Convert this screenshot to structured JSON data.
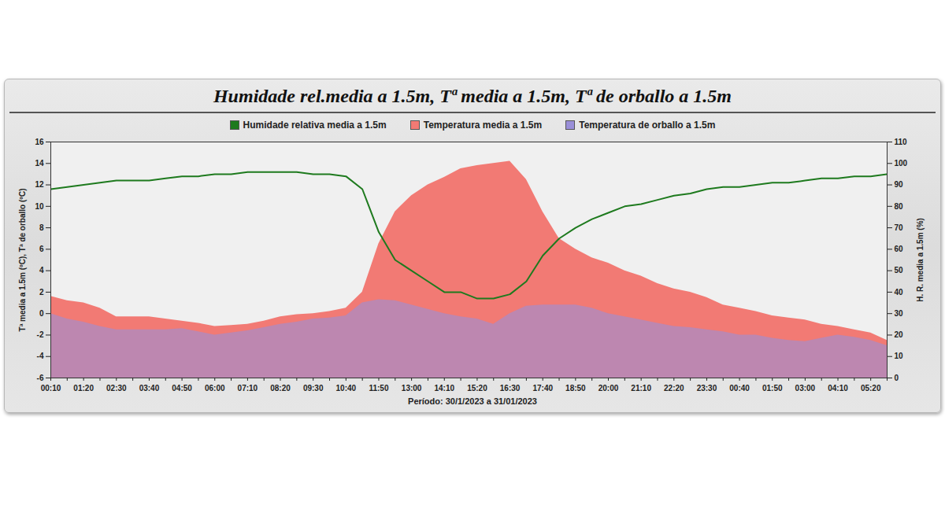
{
  "chart_data": {
    "type": "line",
    "title": "Humidade rel.media a 1.5m, Tª media a 1.5m, Tª de orballo a 1.5m",
    "x_label": "Período: 30/1/2023 a 31/01/2023",
    "y_label": "Tª media a 1.5m (ºC), Tª de orballo (ºC)",
    "y2_label": "H. R. media a 1.5m (%)",
    "categories": [
      "00:10",
      null,
      "01:20",
      null,
      "02:30",
      null,
      "03:40",
      null,
      "04:50",
      null,
      "06:00",
      null,
      "07:10",
      null,
      "08:20",
      null,
      "09:30",
      null,
      "10:40",
      null,
      "11:50",
      null,
      "13:00",
      null,
      "14:10",
      null,
      "15:20",
      null,
      "16:30",
      null,
      "17:40",
      null,
      "18:50",
      null,
      "20:00",
      null,
      "21:10",
      null,
      "22:20",
      null,
      "23:30",
      null,
      "00:40",
      null,
      "01:50",
      null,
      "03:00",
      null,
      "04:10",
      null,
      "05:20",
      null
    ],
    "series": [
      {
        "name": "Humidade relativa media a 1.5m",
        "type": "line",
        "axis": "y2",
        "color": "#1e7a1e",
        "values": [
          88,
          89,
          90,
          91,
          92,
          92,
          92,
          93,
          94,
          94,
          95,
          95,
          96,
          96,
          96,
          96,
          95,
          95,
          94,
          88,
          68,
          55,
          50,
          45,
          40,
          40,
          37,
          37,
          39,
          45,
          57,
          65,
          70,
          74,
          77,
          80,
          81,
          83,
          85,
          86,
          88,
          89,
          89,
          90,
          91,
          91,
          92,
          93,
          93,
          94,
          94,
          95
        ]
      },
      {
        "name": "Temperatura media a 1.5m",
        "type": "area",
        "color": "#f27a74",
        "values": [
          1.6,
          1.2,
          1.0,
          0.5,
          -0.3,
          -0.3,
          -0.3,
          -0.5,
          -0.7,
          -0.9,
          -1.2,
          -1.1,
          -1.0,
          -0.7,
          -0.3,
          -0.1,
          0.0,
          0.2,
          0.5,
          2.0,
          6.5,
          9.5,
          11.0,
          12.0,
          12.7,
          13.5,
          13.8,
          14.0,
          14.2,
          12.5,
          9.5,
          7.0,
          6.0,
          5.2,
          4.7,
          4.0,
          3.5,
          2.8,
          2.3,
          2.0,
          1.5,
          0.8,
          0.5,
          0.2,
          -0.2,
          -0.4,
          -0.6,
          -1.0,
          -1.2,
          -1.5,
          -1.8,
          -2.5
        ]
      },
      {
        "name": "Temperatura de orballo a 1.5m",
        "type": "area",
        "color": "#9a8fd8",
        "values": [
          0.0,
          -0.5,
          -0.8,
          -1.2,
          -1.5,
          -1.5,
          -1.5,
          -1.5,
          -1.4,
          -1.7,
          -2.0,
          -1.8,
          -1.6,
          -1.3,
          -1.0,
          -0.8,
          -0.5,
          -0.4,
          -0.2,
          1.0,
          1.3,
          1.2,
          0.8,
          0.4,
          0.0,
          -0.3,
          -0.5,
          -1.0,
          0.0,
          0.7,
          0.8,
          0.8,
          0.8,
          0.5,
          0.0,
          -0.3,
          -0.6,
          -0.9,
          -1.2,
          -1.3,
          -1.5,
          -1.7,
          -2.0,
          -2.0,
          -2.3,
          -2.5,
          -2.6,
          -2.3,
          -2.0,
          -2.2,
          -2.5,
          -3.0
        ]
      }
    ],
    "ylim": [
      -6,
      16
    ],
    "yticks": [
      -6,
      -4,
      -2,
      0,
      2,
      4,
      6,
      8,
      10,
      12,
      14,
      16
    ],
    "y2lim": [
      0,
      110
    ],
    "y2ticks": [
      0,
      10,
      20,
      30,
      40,
      50,
      60,
      70,
      80,
      90,
      100,
      110
    ],
    "grid": false
  }
}
